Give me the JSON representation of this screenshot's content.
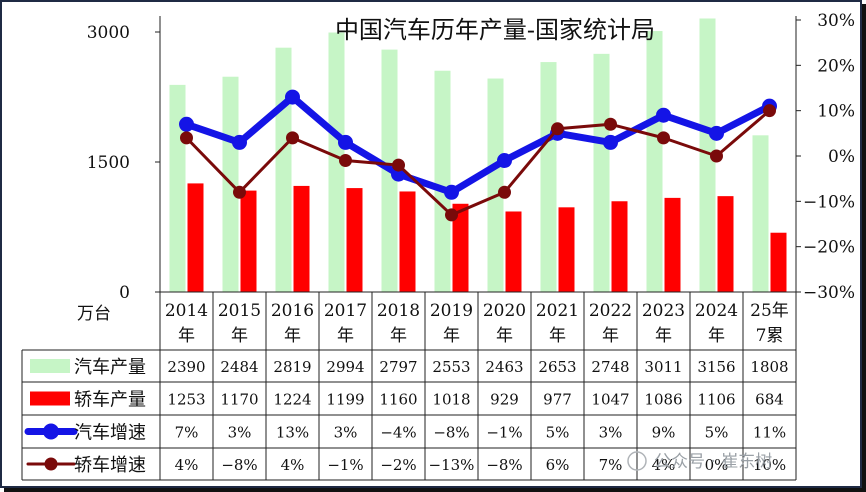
{
  "chart_data": {
    "type": "bar-line-table",
    "title": "中国汽车历年产量-国家统计局",
    "left_axis": {
      "unit": "万台",
      "min": 0,
      "max": 3000,
      "ticks": [
        "0",
        "1500",
        "3000"
      ]
    },
    "right_axis": {
      "min": -30,
      "max": 30,
      "ticks": [
        "-30%",
        "-20%",
        "-10%",
        "0%",
        "10%",
        "20%",
        "30%"
      ]
    },
    "categories": [
      [
        "2014",
        "年"
      ],
      [
        "2015",
        "年"
      ],
      [
        "2016",
        "年"
      ],
      [
        "2017",
        "年"
      ],
      [
        "2018",
        "年"
      ],
      [
        "2019",
        "年"
      ],
      [
        "2020",
        "年"
      ],
      [
        "2021",
        "年"
      ],
      [
        "2022",
        "年"
      ],
      [
        "2023",
        "年"
      ],
      [
        "2024",
        "年"
      ],
      [
        "25年",
        "7累"
      ]
    ],
    "series": [
      {
        "name": "汽车产量",
        "kind": "bar",
        "axis": "left",
        "color": "#c6f5c6",
        "values": [
          2390,
          2484,
          2819,
          2994,
          2797,
          2553,
          2463,
          2653,
          2748,
          3011,
          3156,
          1808
        ],
        "labels": [
          "2390",
          "2484",
          "2819",
          "2994",
          "2797",
          "2553",
          "2463",
          "2653",
          "2748",
          "3011",
          "3156",
          "1808"
        ]
      },
      {
        "name": "轿车产量",
        "kind": "bar",
        "axis": "left",
        "color": "#ff0000",
        "values": [
          1253,
          1170,
          1224,
          1199,
          1160,
          1018,
          929,
          977,
          1047,
          1086,
          1106,
          684
        ],
        "labels": [
          "1253",
          "1170",
          "1224",
          "1199",
          "1160",
          "1018",
          "929",
          "977",
          "1047",
          "1086",
          "1106",
          "684"
        ]
      },
      {
        "name": "汽车增速",
        "kind": "line",
        "axis": "right",
        "color": "#1414e6",
        "values": [
          7,
          3,
          13,
          3,
          -4,
          -8,
          -1,
          5,
          3,
          9,
          5,
          11
        ],
        "labels": [
          "7%",
          "3%",
          "13%",
          "3%",
          "-4%",
          "-8%",
          "-1%",
          "5%",
          "3%",
          "9%",
          "5%",
          "11%"
        ]
      },
      {
        "name": "轿车增速",
        "kind": "line",
        "axis": "right",
        "color": "#7a0a0a",
        "values": [
          4,
          -8,
          4,
          -1,
          -2,
          -13,
          -8,
          6,
          7,
          4,
          0,
          10
        ],
        "labels": [
          "4%",
          "-8%",
          "4%",
          "-1%",
          "-2%",
          "-13%",
          "-8%",
          "6%",
          "7%",
          "4%",
          "0%",
          "10%"
        ]
      }
    ],
    "watermark": "公众号 · 崔东树"
  }
}
